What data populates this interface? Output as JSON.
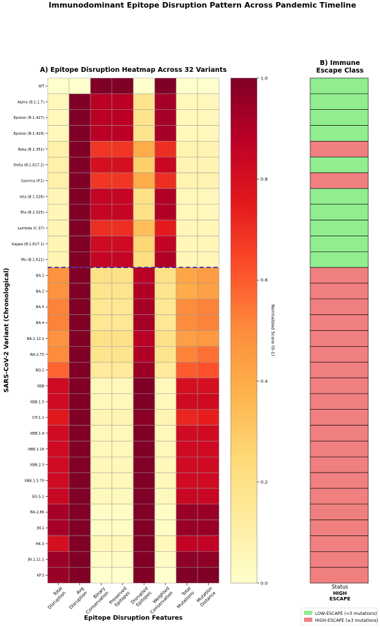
{
  "suptitle": "Immunodominant Epitope Disruption Pattern Across Pandemic Timeline",
  "colors": {
    "low_escape": "#90ee90",
    "high_escape": "#f08080",
    "divider": "#3b2ca8",
    "colormap": [
      "#ffffcc",
      "#ffeda0",
      "#fed976",
      "#feb24c",
      "#fd8d3c",
      "#fc4e2a",
      "#e31a1c",
      "#bd0026",
      "#800026"
    ]
  },
  "chart_data": [
    {
      "type": "heatmap",
      "title": "A) Epitope Disruption Heatmap Across 32 Variants",
      "xlabel": "Epitope Disruption Features",
      "ylabel": "SARS-CoV-2 Variant (Chronological)",
      "columns": [
        "Total Disruption",
        "Avg Disruption",
        "Binary Conservation",
        "Preserved Epitopes",
        "Disrupted Epitopes",
        "Weighted Conservation",
        "Total Mutations",
        "Mutation Distance"
      ],
      "rows": [
        "WT",
        "Alpha (B.1.1.7)",
        "Epsilon (B.1.427)",
        "Epsilon (B.1.429)",
        "Beta (B.1.351)",
        "Delta (B.1.617.2)",
        "Gamma (P.1)",
        "Iota (B.1.526)",
        "Eta (B.1.525)",
        "Lambda (C.37)",
        "Kappa (B.1.617.1)",
        "Mu (B.1.621)",
        "BA.1",
        "BA.2",
        "BA.5",
        "BA.4",
        "BA.2.12.1",
        "BA.2.75",
        "BQ.1",
        "XBB",
        "XBB.1.5",
        "CH.1.1",
        "XBB.1.9",
        "XBB.1.16",
        "XBB.2.3",
        "XBB.1.5.70",
        "EG.5.1",
        "BA.2.86",
        "JN.1",
        "HK.3",
        "JN.1.11.1",
        "KP.3"
      ],
      "values": [
        [
          0.0,
          0.0,
          1.0,
          1.0,
          0.0,
          1.0,
          0.0,
          0.0
        ],
        [
          0.05,
          1.0,
          0.88,
          0.88,
          0.18,
          0.92,
          0.05,
          0.05
        ],
        [
          0.05,
          1.0,
          0.88,
          0.88,
          0.18,
          0.92,
          0.05,
          0.05
        ],
        [
          0.05,
          1.0,
          0.88,
          0.88,
          0.18,
          0.92,
          0.05,
          0.05
        ],
        [
          0.1,
          1.0,
          0.68,
          0.68,
          0.4,
          0.7,
          0.08,
          0.08
        ],
        [
          0.1,
          1.0,
          0.8,
          0.8,
          0.28,
          0.84,
          0.07,
          0.07
        ],
        [
          0.1,
          1.0,
          0.68,
          0.68,
          0.4,
          0.7,
          0.08,
          0.08
        ],
        [
          0.06,
          1.0,
          0.85,
          0.85,
          0.2,
          0.9,
          0.05,
          0.05
        ],
        [
          0.06,
          1.0,
          0.85,
          0.85,
          0.2,
          0.9,
          0.05,
          0.05
        ],
        [
          0.07,
          1.0,
          0.7,
          0.7,
          0.34,
          0.75,
          0.06,
          0.06
        ],
        [
          0.07,
          1.0,
          0.82,
          0.82,
          0.26,
          0.86,
          0.06,
          0.06
        ],
        [
          0.07,
          1.0,
          0.85,
          0.85,
          0.22,
          0.9,
          0.06,
          0.06
        ],
        [
          0.48,
          1.0,
          0.2,
          0.2,
          0.88,
          0.2,
          0.42,
          0.45
        ],
        [
          0.48,
          1.0,
          0.18,
          0.18,
          0.9,
          0.18,
          0.4,
          0.44
        ],
        [
          0.52,
          1.0,
          0.16,
          0.16,
          0.92,
          0.16,
          0.5,
          0.52
        ],
        [
          0.52,
          1.0,
          0.16,
          0.16,
          0.92,
          0.16,
          0.5,
          0.52
        ],
        [
          0.48,
          1.0,
          0.2,
          0.2,
          0.88,
          0.2,
          0.44,
          0.46
        ],
        [
          0.5,
          1.0,
          0.18,
          0.18,
          0.9,
          0.18,
          0.52,
          0.56
        ],
        [
          0.58,
          1.0,
          0.14,
          0.14,
          0.94,
          0.14,
          0.6,
          0.62
        ],
        [
          0.82,
          1.0,
          0.05,
          0.05,
          1.0,
          0.05,
          0.8,
          0.8
        ],
        [
          0.82,
          1.0,
          0.05,
          0.05,
          1.0,
          0.05,
          0.82,
          0.82
        ],
        [
          0.76,
          1.0,
          0.07,
          0.07,
          0.98,
          0.07,
          0.72,
          0.74
        ],
        [
          0.82,
          1.0,
          0.05,
          0.05,
          1.0,
          0.05,
          0.82,
          0.82
        ],
        [
          0.82,
          1.0,
          0.05,
          0.05,
          1.0,
          0.05,
          0.82,
          0.82
        ],
        [
          0.82,
          1.0,
          0.05,
          0.05,
          1.0,
          0.05,
          0.82,
          0.82
        ],
        [
          0.82,
          1.0,
          0.05,
          0.05,
          1.0,
          0.05,
          0.82,
          0.82
        ],
        [
          0.84,
          1.0,
          0.04,
          0.04,
          1.0,
          0.04,
          0.84,
          0.84
        ],
        [
          0.92,
          1.0,
          0.02,
          0.02,
          1.0,
          0.02,
          0.95,
          0.95
        ],
        [
          0.92,
          1.0,
          0.02,
          0.02,
          1.0,
          0.02,
          0.95,
          0.95
        ],
        [
          0.8,
          1.0,
          0.05,
          0.05,
          1.0,
          0.05,
          0.86,
          0.86
        ],
        [
          0.94,
          1.0,
          0.02,
          0.02,
          1.0,
          0.02,
          0.97,
          0.97
        ],
        [
          0.95,
          1.0,
          0.0,
          0.0,
          1.0,
          0.0,
          1.0,
          1.0
        ]
      ],
      "divider_after_row": "Mu (B.1.621)",
      "colorbar": {
        "label": "Normalized Score (0-1)",
        "ticks": [
          "0.0",
          "0.2",
          "0.4",
          "0.6",
          "0.8",
          "1.0"
        ],
        "range": [
          0,
          1
        ]
      }
    },
    {
      "type": "heatmap",
      "title": "B) Immune Escape Class",
      "xlabel": "Status",
      "column_label": "HIGH ESCAPE",
      "categories": [
        "LOW",
        "LOW",
        "LOW",
        "LOW",
        "HIGH",
        "LOW",
        "HIGH",
        "LOW",
        "LOW",
        "LOW",
        "LOW",
        "LOW",
        "HIGH",
        "HIGH",
        "HIGH",
        "HIGH",
        "HIGH",
        "HIGH",
        "HIGH",
        "HIGH",
        "HIGH",
        "HIGH",
        "HIGH",
        "HIGH",
        "HIGH",
        "HIGH",
        "HIGH",
        "HIGH",
        "HIGH",
        "HIGH",
        "HIGH",
        "HIGH"
      ],
      "legend": [
        {
          "key": "LOW",
          "label": "LOW-ESCAPE (<3 mutations)"
        },
        {
          "key": "HIGH",
          "label": "HIGH-ESCAPE (≥3 mutations)"
        }
      ],
      "legend_position": "bottom-right"
    }
  ]
}
